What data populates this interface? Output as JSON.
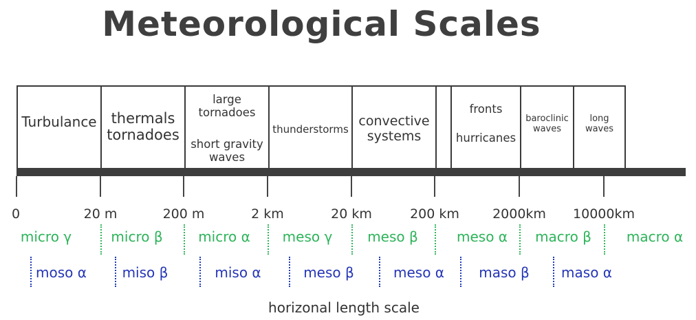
{
  "title": "Meteorological Scales",
  "phenomena": [
    {
      "lines": [
        "Turbulance"
      ]
    },
    {
      "lines": [
        "thermals",
        "tornadoes"
      ]
    },
    {
      "lines": [
        "large",
        "tornadoes"
      ],
      "lines2": [
        "short gravity",
        "waves"
      ]
    },
    {
      "lines": [
        "thunderstorms"
      ]
    },
    {
      "lines": [
        "convective",
        "systems"
      ]
    },
    {
      "lines": [
        ""
      ]
    },
    {
      "lines": [
        "fronts"
      ],
      "lines2": [
        "hurricanes"
      ]
    },
    {
      "lines": [
        "baroclinic",
        "waves"
      ]
    },
    {
      "lines": [
        "long",
        "waves"
      ]
    }
  ],
  "ticks": [
    "0",
    "20 m",
    "200 m",
    "2 km",
    "20 km",
    "200 km",
    "2000km",
    "10000km"
  ],
  "scales_green": [
    "micro γ",
    "micro β",
    "micro α",
    "meso γ",
    "meso β",
    "meso α",
    "macro β",
    "macro α"
  ],
  "scales_blue": [
    "moso α",
    "miso β",
    "miso α",
    "meso β",
    "meso α",
    "maso β",
    "maso α"
  ],
  "xlabel": "horizonal length scale",
  "colors": {
    "green": "#2eb35a",
    "blue": "#2435b6",
    "dark": "#3d3d3d"
  }
}
